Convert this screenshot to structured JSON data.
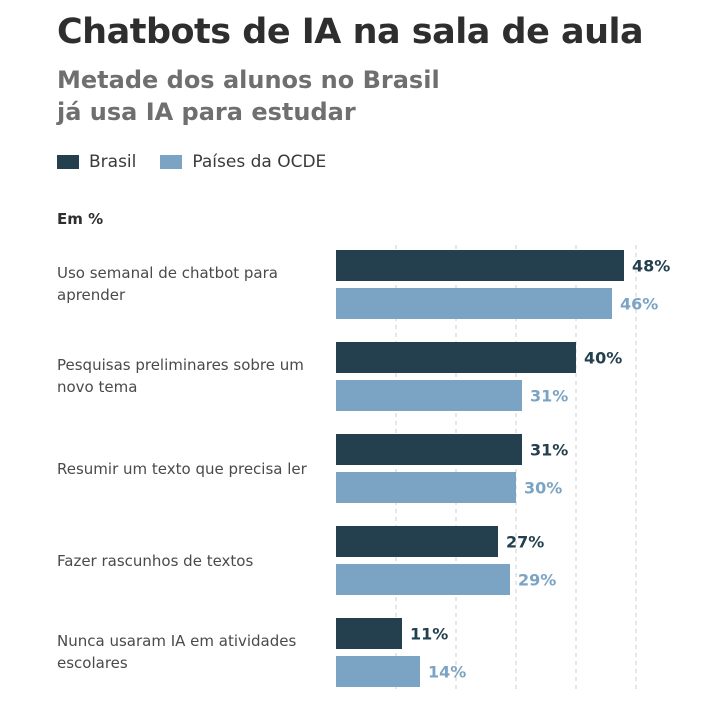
{
  "title": "Chatbots de IA na sala de aula",
  "subtitle_lines": [
    "Metade dos alunos no Brasil",
    "já usa IA para estudar"
  ],
  "unit_label": "Em %",
  "colors": {
    "brasil": "#24404f",
    "ocde": "#7ba4c4",
    "grid": "#cfcfcf"
  },
  "chart_data": {
    "type": "bar",
    "orientation": "horizontal",
    "title": "Chatbots de IA na sala de aula",
    "subtitle": "Metade dos alunos no Brasil já usa IA para estudar",
    "unit": "Em %",
    "legend": "top-left",
    "grid": true,
    "xlim": [
      0,
      50
    ],
    "categories": [
      "Uso semanal de chatbot para aprender",
      "Pesquisas preliminares sobre um novo tema",
      "Resumir um texto que precisa ler",
      "Fazer rascunhos de textos",
      "Nunca usaram IA em atividades escolares"
    ],
    "series": [
      {
        "name": "Brasil",
        "values": [
          48,
          40,
          31,
          27,
          11
        ],
        "labels": [
          "48%",
          "40%",
          "31%",
          "27%",
          "11%"
        ]
      },
      {
        "name": "Países da OCDE",
        "values": [
          46,
          31,
          30,
          29,
          14
        ],
        "labels": [
          "46%",
          "31%",
          "30%",
          "29%",
          "14%"
        ]
      }
    ]
  }
}
